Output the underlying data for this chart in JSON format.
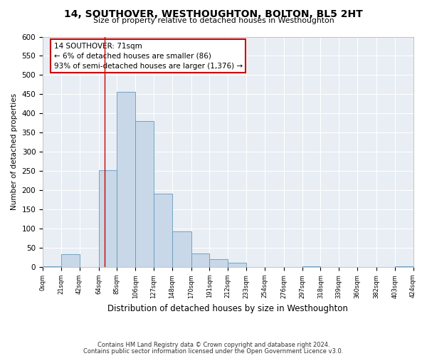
{
  "title": "14, SOUTHOVER, WESTHOUGHTON, BOLTON, BL5 2HT",
  "subtitle": "Size of property relative to detached houses in Westhoughton",
  "xlabel": "Distribution of detached houses by size in Westhoughton",
  "ylabel": "Number of detached properties",
  "bar_color": "#c8d8e8",
  "bar_edge_color": "#6699bb",
  "background_color": "#e8eef4",
  "grid_color": "#ffffff",
  "annotation_line1": "14 SOUTHOVER: 71sqm",
  "annotation_line2": "← 6% of detached houses are smaller (86)",
  "annotation_line3": "93% of semi-detached houses are larger (1,376) →",
  "annotation_box_color": "#cc0000",
  "vline_x": 71,
  "vline_color": "#cc0000",
  "bin_edges": [
    0,
    21,
    42,
    64,
    85,
    106,
    127,
    148,
    170,
    191,
    212,
    233,
    254,
    276,
    297,
    318,
    339,
    360,
    382,
    403,
    424
  ],
  "bin_counts": [
    2,
    33,
    0,
    252,
    457,
    380,
    192,
    93,
    35,
    20,
    12,
    1,
    0,
    0,
    2,
    0,
    0,
    1,
    0,
    2
  ],
  "tick_labels": [
    "0sqm",
    "21sqm",
    "42sqm",
    "64sqm",
    "85sqm",
    "106sqm",
    "127sqm",
    "148sqm",
    "170sqm",
    "191sqm",
    "212sqm",
    "233sqm",
    "254sqm",
    "276sqm",
    "297sqm",
    "318sqm",
    "339sqm",
    "360sqm",
    "382sqm",
    "403sqm",
    "424sqm"
  ],
  "ylim": [
    0,
    600
  ],
  "yticks": [
    0,
    50,
    100,
    150,
    200,
    250,
    300,
    350,
    400,
    450,
    500,
    550,
    600
  ],
  "footnote1": "Contains HM Land Registry data © Crown copyright and database right 2024.",
  "footnote2": "Contains public sector information licensed under the Open Government Licence v3.0.",
  "figwidth": 6.0,
  "figheight": 5.0,
  "dpi": 100
}
